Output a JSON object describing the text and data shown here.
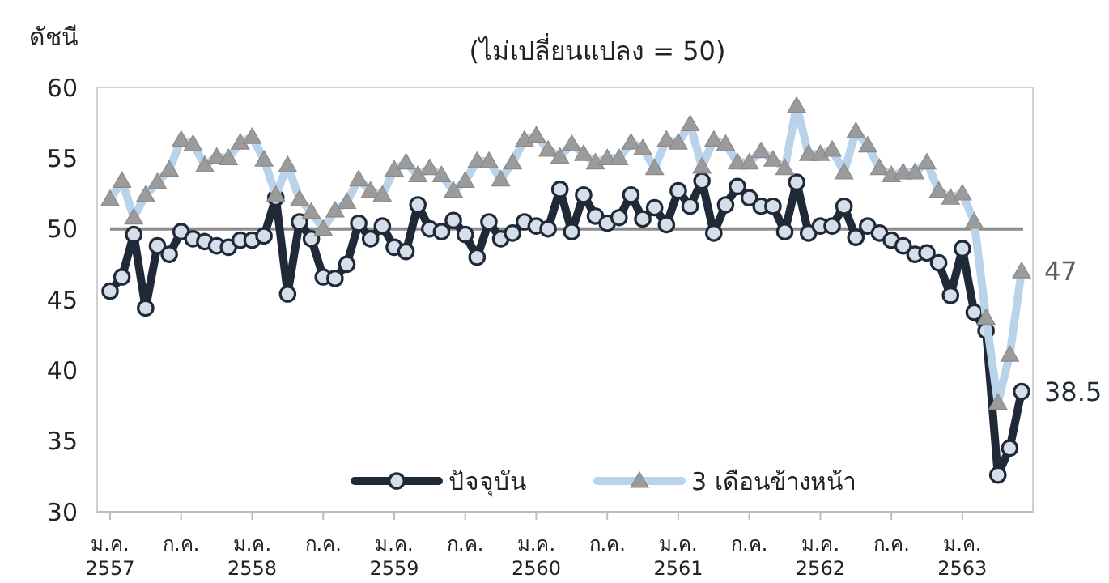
{
  "chart_data": {
    "type": "line",
    "title": "(ไม่เปลี่ยนแปลง = 50)",
    "ylabel": "ดัชนี",
    "categories": [
      "ม.ค. 2557",
      null,
      null,
      null,
      null,
      null,
      "ก.ค.",
      null,
      null,
      null,
      null,
      null,
      "ม.ค. 2558",
      null,
      null,
      null,
      null,
      null,
      "ก.ค.",
      null,
      null,
      null,
      null,
      null,
      "ม.ค. 2559",
      null,
      null,
      null,
      null,
      null,
      "ก.ค.",
      null,
      null,
      null,
      null,
      null,
      "ม.ค. 2560",
      null,
      null,
      null,
      null,
      null,
      "ก.ค.",
      null,
      null,
      null,
      null,
      null,
      "ม.ค. 2561",
      null,
      null,
      null,
      null,
      null,
      "ก.ค.",
      null,
      null,
      null,
      null,
      null,
      "ม.ค. 2562",
      null,
      null,
      null,
      null,
      null,
      "ก.ค.",
      null,
      null,
      null,
      null,
      null,
      "ม.ค. 2563",
      null,
      null,
      null,
      null,
      null
    ],
    "series": [
      {
        "name": "ปัจจุบัน",
        "color": "#1f2937",
        "marker": "circle",
        "values": [
          45.6,
          46.6,
          49.6,
          44.4,
          48.8,
          48.2,
          49.8,
          49.3,
          49.1,
          48.8,
          48.7,
          49.2,
          49.2,
          49.5,
          52.2,
          45.4,
          50.5,
          49.3,
          46.6,
          46.5,
          47.5,
          50.4,
          49.3,
          50.2,
          48.7,
          48.4,
          51.7,
          50.0,
          49.8,
          50.6,
          49.6,
          48.0,
          50.5,
          49.3,
          49.7,
          50.5,
          50.2,
          50.0,
          52.8,
          49.8,
          52.4,
          50.9,
          50.4,
          50.8,
          52.4,
          50.7,
          51.5,
          50.3,
          52.7,
          51.6,
          53.4,
          49.7,
          51.7,
          53.0,
          52.2,
          51.6,
          51.6,
          49.8,
          53.3,
          49.7,
          50.2,
          50.2,
          51.6,
          49.4,
          50.2,
          49.7,
          49.2,
          48.8,
          48.2,
          48.3,
          47.6,
          45.3,
          48.6,
          44.1,
          42.8,
          32.6,
          34.5,
          38.5
        ],
        "value_labels": [
          null,
          null,
          null,
          null,
          null,
          null,
          null,
          null,
          null,
          null,
          null,
          null,
          null,
          null,
          null,
          null,
          null,
          null,
          null,
          null,
          null,
          null,
          null,
          null,
          null,
          null,
          null,
          null,
          null,
          null,
          null,
          null,
          null,
          null,
          null,
          null,
          null,
          null,
          null,
          null,
          null,
          null,
          null,
          null,
          null,
          null,
          null,
          null,
          null,
          null,
          null,
          null,
          null,
          null,
          null,
          null,
          null,
          null,
          null,
          null,
          null,
          null,
          null,
          null,
          null,
          null,
          null,
          null,
          null,
          null,
          null,
          null,
          null,
          null,
          null,
          null,
          null,
          "38.5"
        ]
      },
      {
        "name": "3 เดือนข้างหน้า",
        "color": "#b9d3ea",
        "marker": "triangle",
        "values": [
          52.1,
          53.4,
          50.8,
          52.4,
          53.3,
          54.2,
          56.3,
          56.0,
          54.5,
          55.1,
          55.0,
          56.1,
          56.5,
          54.9,
          52.4,
          54.5,
          52.1,
          51.2,
          50.0,
          51.3,
          51.9,
          53.5,
          52.7,
          52.4,
          54.2,
          54.7,
          53.8,
          54.3,
          53.8,
          52.7,
          53.4,
          54.8,
          54.8,
          53.5,
          54.7,
          56.3,
          56.6,
          55.6,
          55.1,
          56.0,
          55.3,
          54.7,
          55.0,
          55.0,
          56.1,
          55.7,
          54.3,
          56.3,
          56.1,
          57.4,
          54.4,
          56.3,
          56.0,
          54.7,
          54.7,
          55.5,
          54.9,
          54.3,
          58.7,
          55.3,
          55.3,
          55.6,
          54.0,
          56.9,
          55.9,
          54.3,
          53.8,
          54.0,
          54.0,
          54.7,
          52.7,
          52.2,
          52.5,
          50.5,
          43.7,
          37.7,
          41.1,
          47
        ],
        "value_labels": [
          null,
          null,
          null,
          null,
          null,
          null,
          null,
          null,
          null,
          null,
          null,
          null,
          null,
          null,
          null,
          null,
          null,
          null,
          null,
          null,
          null,
          null,
          null,
          null,
          null,
          null,
          null,
          null,
          null,
          null,
          null,
          null,
          null,
          null,
          null,
          null,
          null,
          null,
          null,
          null,
          null,
          null,
          null,
          null,
          null,
          null,
          null,
          null,
          null,
          null,
          null,
          null,
          null,
          null,
          null,
          null,
          null,
          null,
          null,
          null,
          null,
          null,
          null,
          null,
          null,
          null,
          null,
          null,
          null,
          null,
          null,
          null,
          null,
          null,
          null,
          null,
          null,
          "47"
        ]
      }
    ],
    "ylim": [
      30,
      60
    ],
    "yticks": [
      30,
      35,
      40,
      45,
      50,
      55,
      60
    ],
    "ref_lines": [
      {
        "axis": "y",
        "value": 50,
        "color": "#8c8c8c"
      }
    ],
    "legend": "bottom",
    "grid": false
  }
}
